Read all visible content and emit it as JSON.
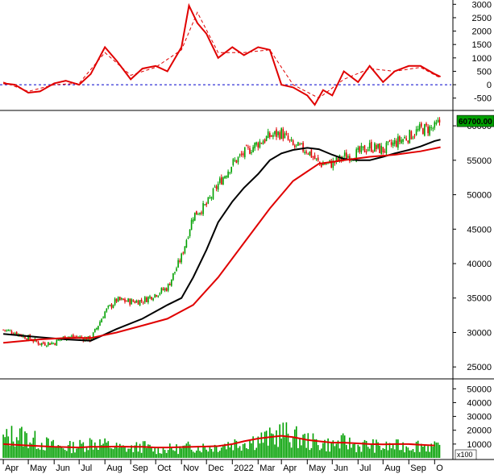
{
  "chart_data": [
    {
      "type": "line",
      "panel": "oscillator",
      "yticks": [
        3000,
        2500,
        2000,
        1500,
        1000,
        500,
        0,
        -500
      ],
      "ylim": [
        -900,
        3100
      ],
      "zero_line": 0,
      "series": [
        {
          "style": "solid",
          "color": "#e00000",
          "x": [
            "2021-04-01",
            "2021-04-15",
            "2021-05-01",
            "2021-05-15",
            "2021-06-01",
            "2021-06-15",
            "2021-07-01",
            "2021-07-15",
            "2021-08-01",
            "2021-08-15",
            "2021-09-01",
            "2021-09-15",
            "2021-10-01",
            "2021-10-15",
            "2021-11-01",
            "2021-11-10",
            "2021-11-20",
            "2021-12-01",
            "2021-12-15",
            "2022-01-01",
            "2022-01-15",
            "2022-02-01",
            "2022-02-15",
            "2022-03-01",
            "2022-03-15",
            "2022-04-01",
            "2022-04-10",
            "2022-04-20",
            "2022-05-01",
            "2022-05-15",
            "2022-06-01",
            "2022-06-15",
            "2022-07-01",
            "2022-07-15",
            "2022-08-01",
            "2022-08-15",
            "2022-09-01",
            "2022-09-08"
          ],
          "values": [
            50,
            0,
            -300,
            -250,
            50,
            150,
            0,
            400,
            1400,
            900,
            200,
            600,
            700,
            500,
            1400,
            2950,
            2300,
            1900,
            1000,
            1400,
            1100,
            1400,
            1300,
            0,
            -100,
            -400,
            -750,
            -200,
            -400,
            500,
            100,
            700,
            100,
            500,
            700,
            700,
            400,
            300
          ]
        },
        {
          "style": "dashed",
          "color": "#e00000",
          "x": [
            "2021-04-01",
            "2021-05-01",
            "2021-06-01",
            "2021-07-01",
            "2021-08-01",
            "2021-09-01",
            "2021-10-01",
            "2021-11-01",
            "2021-11-20",
            "2021-12-15",
            "2022-01-15",
            "2022-02-15",
            "2022-03-15",
            "2022-04-15",
            "2022-05-15",
            "2022-06-15",
            "2022-07-15",
            "2022-08-15",
            "2022-09-08"
          ],
          "values": [
            100,
            -250,
            0,
            50,
            1200,
            350,
            650,
            1300,
            2700,
            1200,
            1200,
            1300,
            0,
            -500,
            200,
            600,
            500,
            650,
            250
          ]
        }
      ]
    },
    {
      "type": "candlestick",
      "panel": "price",
      "yticks": [
        60000,
        55000,
        50000,
        45000,
        40000,
        35000,
        30000,
        25000
      ],
      "ylim": [
        23500,
        62000
      ],
      "last_price_label": "60700.00",
      "last_price": 60700,
      "candles": [
        {
          "date": "2021-04-01",
          "close": 30400
        },
        {
          "date": "2021-04-15",
          "close": 30000
        },
        {
          "date": "2021-05-01",
          "close": 29200
        },
        {
          "date": "2021-05-15",
          "close": 28400
        },
        {
          "date": "2021-06-01",
          "close": 28500
        },
        {
          "date": "2021-06-15",
          "close": 29400
        },
        {
          "date": "2021-07-01",
          "close": 29300
        },
        {
          "date": "2021-07-15",
          "close": 29000
        },
        {
          "date": "2021-08-01",
          "close": 33000
        },
        {
          "date": "2021-08-15",
          "close": 34700
        },
        {
          "date": "2021-09-01",
          "close": 34500
        },
        {
          "date": "2021-09-15",
          "close": 34600
        },
        {
          "date": "2021-10-01",
          "close": 35600
        },
        {
          "date": "2021-10-15",
          "close": 36500
        },
        {
          "date": "2021-11-01",
          "close": 41000
        },
        {
          "date": "2021-11-15",
          "close": 47000
        },
        {
          "date": "2021-12-01",
          "close": 48500
        },
        {
          "date": "2021-12-15",
          "close": 51500
        },
        {
          "date": "2022-01-01",
          "close": 54500
        },
        {
          "date": "2022-01-15",
          "close": 56000
        },
        {
          "date": "2022-02-01",
          "close": 57500
        },
        {
          "date": "2022-02-15",
          "close": 58500
        },
        {
          "date": "2022-03-01",
          "close": 59000
        },
        {
          "date": "2022-03-15",
          "close": 57000
        },
        {
          "date": "2022-04-01",
          "close": 56500
        },
        {
          "date": "2022-04-15",
          "close": 54500
        },
        {
          "date": "2022-05-01",
          "close": 54500
        },
        {
          "date": "2022-05-15",
          "close": 55500
        },
        {
          "date": "2022-06-01",
          "close": 56000
        },
        {
          "date": "2022-06-15",
          "close": 57000
        },
        {
          "date": "2022-07-01",
          "close": 56500
        },
        {
          "date": "2022-07-15",
          "close": 57500
        },
        {
          "date": "2022-08-01",
          "close": 58500
        },
        {
          "date": "2022-08-15",
          "close": 59500
        },
        {
          "date": "2022-09-01",
          "close": 59700
        },
        {
          "date": "2022-09-08",
          "close": 60700
        }
      ],
      "moving_averages": [
        {
          "color": "#000000",
          "x": [
            "2021-04-01",
            "2021-05-15",
            "2021-06-15",
            "2021-07-15",
            "2021-08-15",
            "2021-09-15",
            "2021-10-15",
            "2021-11-01",
            "2021-11-15",
            "2021-12-01",
            "2021-12-15",
            "2022-01-01",
            "2022-01-15",
            "2022-02-01",
            "2022-02-15",
            "2022-03-01",
            "2022-03-15",
            "2022-04-01",
            "2022-04-15",
            "2022-05-01",
            "2022-05-15",
            "2022-06-01",
            "2022-06-15",
            "2022-07-01",
            "2022-07-15",
            "2022-08-01",
            "2022-08-15",
            "2022-09-01",
            "2022-09-08"
          ],
          "values": [
            29800,
            29300,
            29000,
            28800,
            30500,
            32000,
            34000,
            35000,
            38000,
            42000,
            46000,
            49000,
            51000,
            53000,
            55000,
            56000,
            56500,
            56800,
            56600,
            55800,
            55200,
            55000,
            55000,
            55500,
            56000,
            56500,
            57000,
            57800,
            58000
          ]
        },
        {
          "color": "#e00000",
          "x": [
            "2021-04-01",
            "2021-05-15",
            "2021-06-15",
            "2021-07-15",
            "2021-08-15",
            "2021-09-15",
            "2021-10-15",
            "2021-11-15",
            "2021-12-15",
            "2022-01-15",
            "2022-02-15",
            "2022-03-15",
            "2022-04-15",
            "2022-05-15",
            "2022-06-15",
            "2022-07-15",
            "2022-08-15",
            "2022-09-08"
          ],
          "values": [
            28500,
            29000,
            29200,
            29200,
            30000,
            31000,
            32000,
            34000,
            38000,
            43000,
            48000,
            52000,
            54500,
            55000,
            55500,
            55800,
            56300,
            56900
          ]
        }
      ]
    },
    {
      "type": "bar",
      "panel": "volume",
      "yticks": [
        50000,
        40000,
        30000,
        20000,
        10000
      ],
      "ylim": [
        0,
        56000
      ],
      "unit_label": "x100",
      "x": [
        "2021-04-01",
        "2021-04-15",
        "2021-05-01",
        "2021-05-15",
        "2021-06-01",
        "2021-06-15",
        "2021-07-01",
        "2021-07-15",
        "2021-08-01",
        "2021-08-15",
        "2021-09-01",
        "2021-09-15",
        "2021-10-01",
        "2021-10-15",
        "2021-11-01",
        "2021-11-15",
        "2021-12-01",
        "2021-12-15",
        "2022-01-01",
        "2022-01-15",
        "2022-02-01",
        "2022-02-15",
        "2022-03-01",
        "2022-03-15",
        "2022-04-01",
        "2022-04-15",
        "2022-05-01",
        "2022-05-15",
        "2022-06-01",
        "2022-06-15",
        "2022-07-01",
        "2022-07-15",
        "2022-08-01",
        "2022-08-15",
        "2022-09-01"
      ],
      "values": [
        14000,
        18000,
        15000,
        12000,
        9000,
        8000,
        9000,
        12000,
        10000,
        8000,
        7000,
        9000,
        6000,
        7000,
        7000,
        9000,
        8000,
        9000,
        11000,
        12000,
        14000,
        15000,
        19000,
        16000,
        13000,
        11000,
        10000,
        12000,
        9000,
        10000,
        8000,
        9000,
        9000,
        10000,
        8000
      ],
      "average": {
        "color": "#e00000",
        "values": [
          10000,
          9500,
          9000,
          8500,
          8000,
          7800,
          7500,
          8000,
          8000,
          8200,
          8000,
          8000,
          7500,
          7500,
          7800,
          8000,
          8200,
          8500,
          10000,
          12000,
          14000,
          15000,
          16000,
          15000,
          13000,
          12000,
          11000,
          11000,
          10500,
          10000,
          9800,
          10000,
          10000,
          9500,
          9000
        ]
      }
    }
  ],
  "x_axis": {
    "labels": [
      "Apr",
      "May",
      "Jun",
      "Jul",
      "Aug",
      "Sep",
      "Oct",
      "Nov",
      "Dec",
      "2022",
      "Mar",
      "Apr",
      "May",
      "Jun",
      "Jul",
      "Aug",
      "Sep",
      "O"
    ]
  },
  "colors": {
    "up": "#00a000",
    "down": "#e00000",
    "zero_line": "#0000cc",
    "price_tag_bg": "#00a000"
  }
}
